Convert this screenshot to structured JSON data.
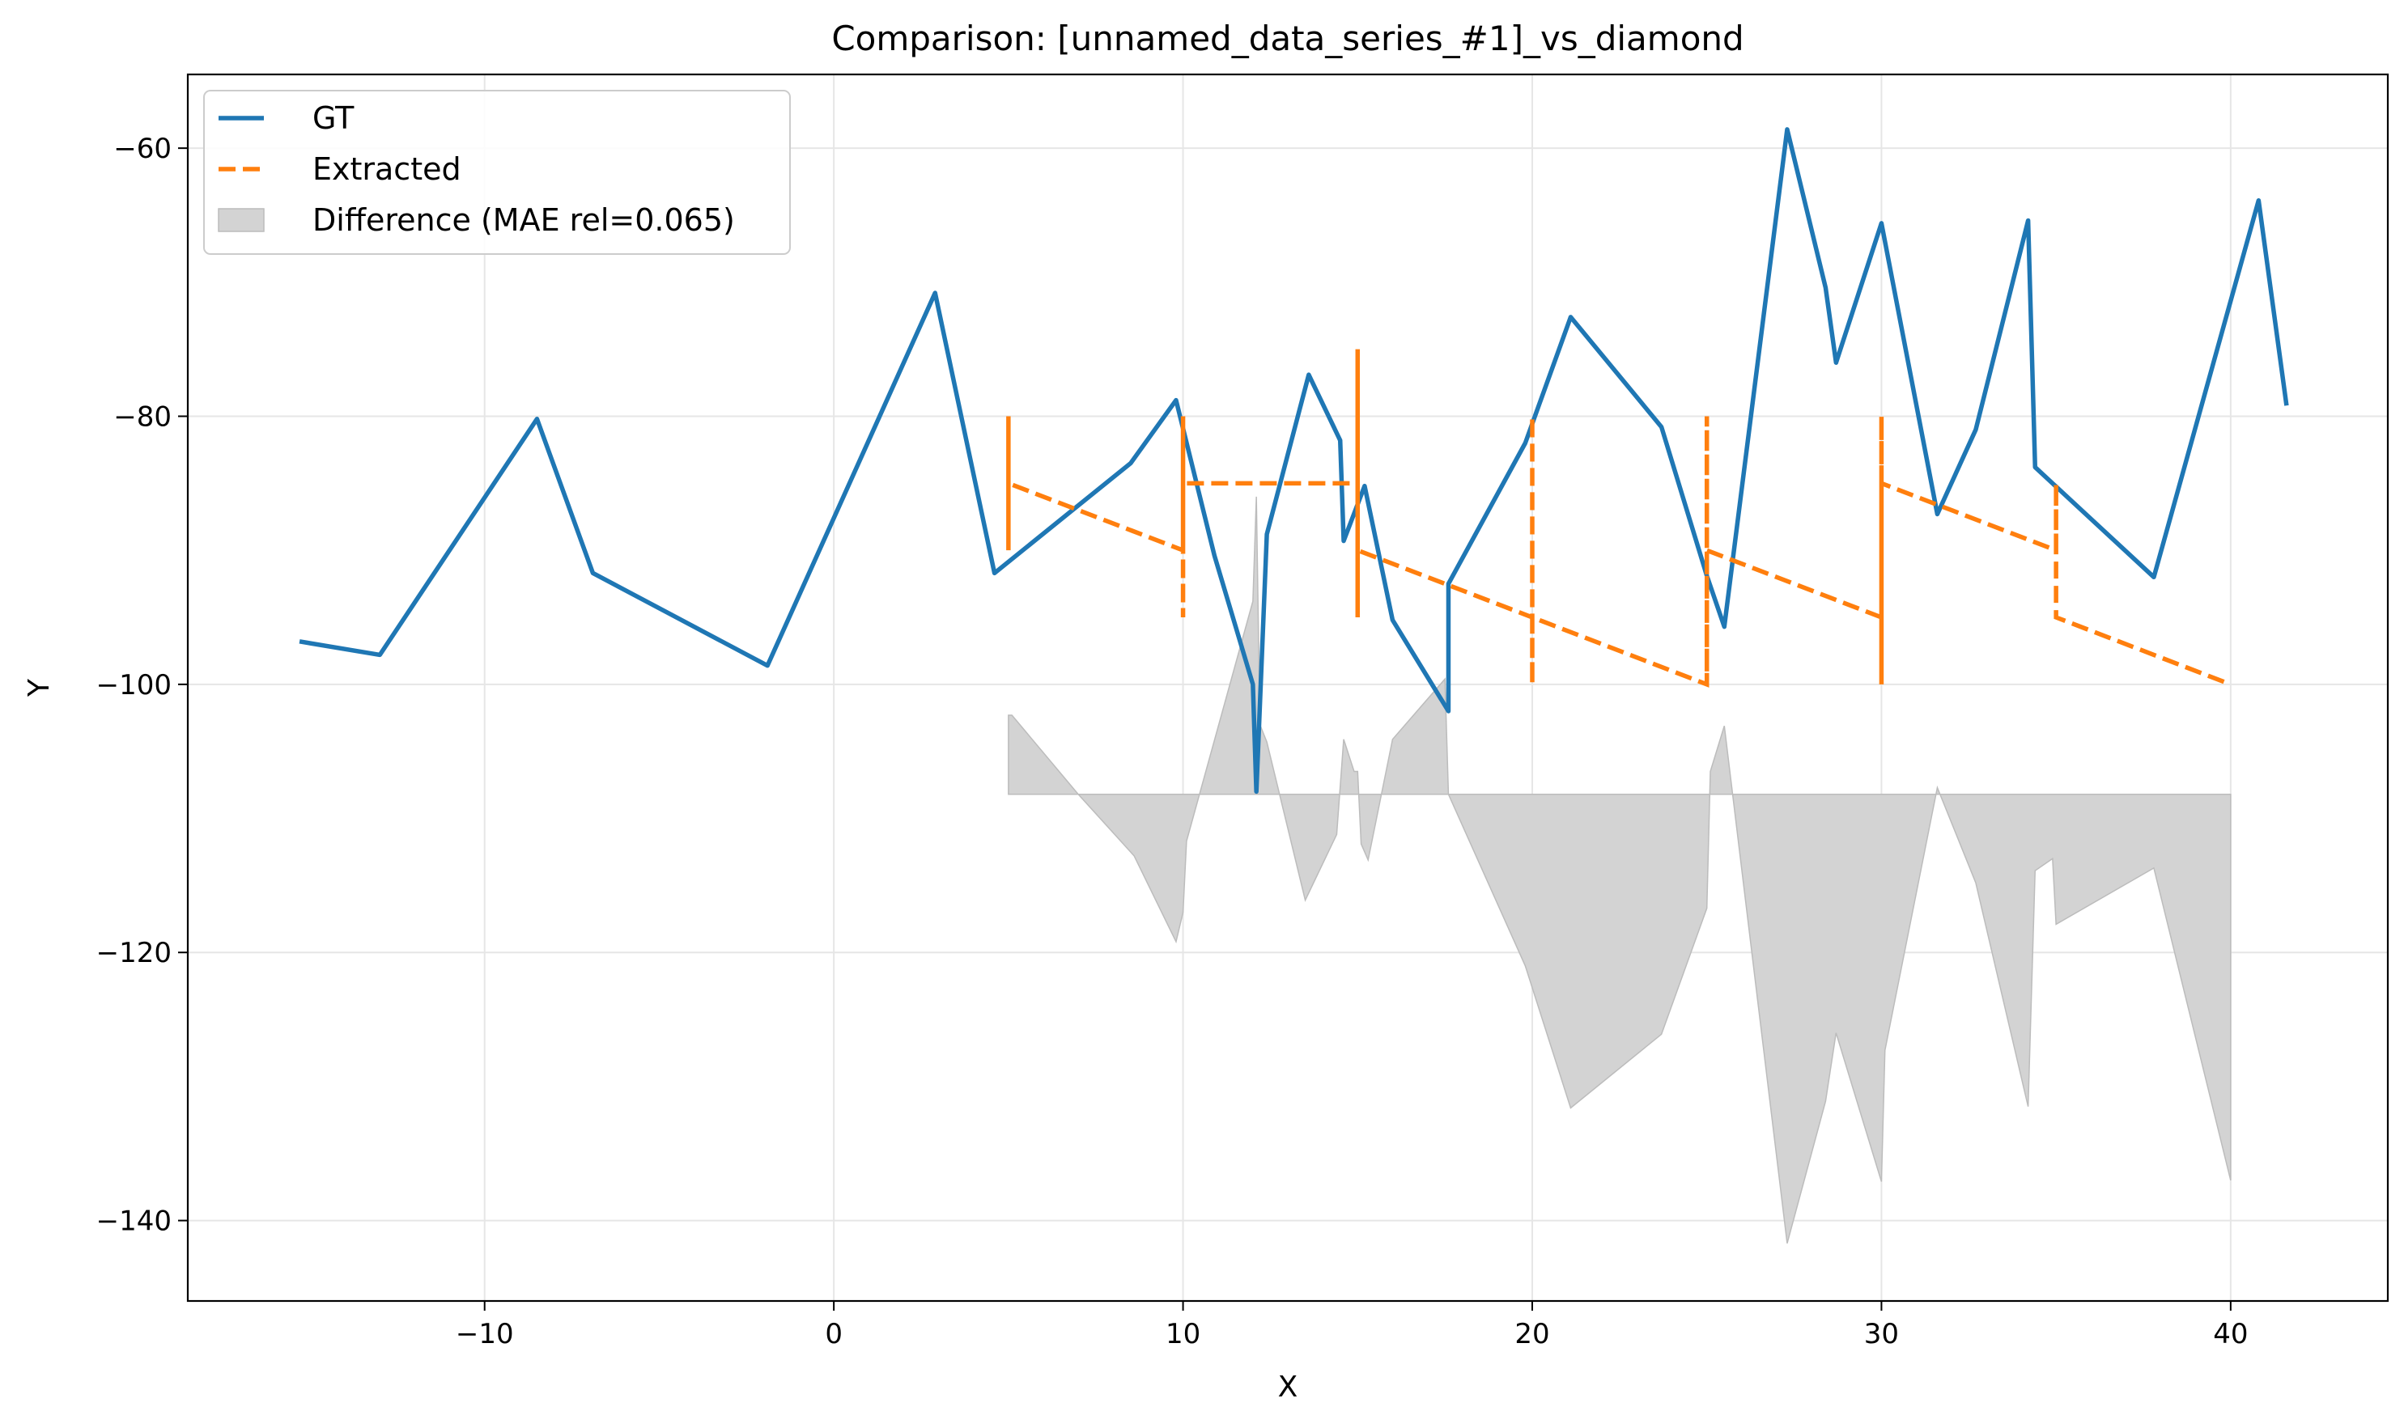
{
  "chart_data": {
    "type": "line",
    "title": "Comparison: [unnamed_data_series_#1]_vs_diamond",
    "xlabel": "X",
    "ylabel": "Y",
    "xlim": [
      -18.5,
      44.5
    ],
    "ylim": [
      -146,
      -54.5
    ],
    "xticks": [
      -10,
      0,
      10,
      20,
      30,
      40
    ],
    "yticks": [
      -60,
      -80,
      -100,
      -120,
      -140
    ],
    "grid": true,
    "legend_position": "top-left",
    "series": [
      {
        "name": "GT",
        "style": "solid",
        "color": "#1f77b4",
        "x": [
          -15.3,
          -13.0,
          -8.5,
          -6.9,
          -1.9,
          2.9,
          4.6,
          8.5,
          9.8,
          10.9,
          12.0,
          12.1,
          12.4,
          13.6,
          14.5,
          14.6,
          15.2,
          16.0,
          17.6,
          17.6,
          19.8,
          21.1,
          23.7,
          25.0,
          25.5,
          27.3,
          28.4,
          28.7,
          30.0,
          31.6,
          32.7,
          34.2,
          34.4,
          37.8,
          40.8,
          41.6
        ],
        "y": [
          -96.8,
          -97.8,
          -80.2,
          -91.7,
          -98.6,
          -70.8,
          -91.7,
          -83.5,
          -78.8,
          -90.4,
          -100.0,
          -108.0,
          -88.8,
          -76.9,
          -81.8,
          -89.3,
          -85.2,
          -95.2,
          -102.0,
          -92.5,
          -82.0,
          -72.6,
          -80.8,
          -91.9,
          -95.7,
          -58.6,
          -70.4,
          -76.0,
          -65.6,
          -87.3,
          -81.0,
          -65.4,
          -83.8,
          -92.0,
          -63.9,
          -79.2
        ]
      },
      {
        "name": "Extracted",
        "style": "dashed",
        "color": "#ff7f0e",
        "x": [
          5,
          5,
          5,
          5,
          10,
          10,
          10,
          10,
          10,
          15,
          15,
          15,
          15,
          15,
          20,
          20,
          20,
          20,
          25,
          25,
          25,
          25,
          30,
          30,
          30,
          30,
          35,
          35,
          35,
          40
        ],
        "y": [
          -90,
          -80,
          -90,
          -85,
          -90,
          -80,
          -95,
          -85,
          -85,
          -85,
          -75,
          -95,
          -85,
          -90,
          -95,
          -80,
          -100,
          -95,
          -100,
          -80,
          -100,
          -90,
          -95,
          -80,
          -100,
          -85,
          -90,
          -85,
          -95,
          -100
        ]
      },
      {
        "name": "Difference (MAE rel=0.065)",
        "style": "fill",
        "color": "#d3d3d3",
        "x": [
          5,
          5.1,
          7.0,
          8.6,
          9.8,
          10.0,
          10.1,
          12.0,
          12.1,
          12.2,
          12.4,
          13.5,
          14.4,
          14.6,
          14.9,
          15.0,
          15.1,
          15.3,
          16.0,
          17.5,
          17.6,
          19.8,
          21.1,
          23.7,
          25.0,
          25.1,
          25.5,
          27.3,
          28.4,
          28.7,
          30.0,
          30.1,
          31.6,
          32.7,
          34.2,
          34.4,
          34.9,
          35.0,
          37.8,
          40.0
        ],
        "y": [
          -102.3,
          -102.3,
          -108.2,
          -112.8,
          -119.2,
          -117.0,
          -111.7,
          -93.8,
          -86.0,
          -103.0,
          -104.3,
          -116.1,
          -111.2,
          -104.1,
          -106.5,
          -106.5,
          -111.9,
          -113.1,
          -104.1,
          -99.6,
          -108.2,
          -121.0,
          -131.6,
          -126.1,
          -116.7,
          -106.5,
          -103.1,
          -141.7,
          -131.1,
          -126.0,
          -137.1,
          -127.3,
          -107.7,
          -114.8,
          -131.5,
          -113.9,
          -113.0,
          -117.9,
          -113.7,
          -137.0
        ]
      }
    ],
    "fill_baseline": -108.2
  }
}
